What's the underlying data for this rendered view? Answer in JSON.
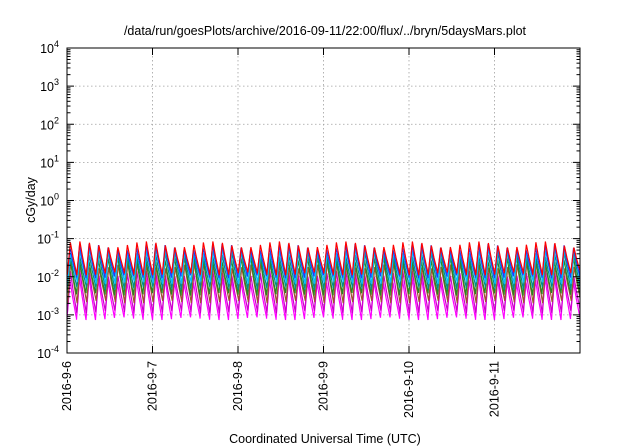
{
  "chart_data": {
    "type": "line",
    "title": "/data/run/goesPlots/archive/2016-09-11/22:00/flux/../bryn/5daysMars.plot",
    "xlabel": "Coordinated Universal Time (UTC)",
    "ylabel": "cGy/day",
    "yscale": "log",
    "ylim": [
      0.0001,
      10000
    ],
    "xlim": [
      "2016-09-06",
      "2016-09-12"
    ],
    "x_ticks": [
      "2016-9-6",
      "2016-9-7",
      "2016-9-8",
      "2016-9-9",
      "2016-9-10",
      "2016-9-11"
    ],
    "y_ticks": [
      {
        "base": "10",
        "exp": "-4",
        "value": 0.0001
      },
      {
        "base": "10",
        "exp": "-3",
        "value": 0.001
      },
      {
        "base": "10",
        "exp": "-2",
        "value": 0.01
      },
      {
        "base": "10",
        "exp": "-1",
        "value": 0.1
      },
      {
        "base": "10",
        "exp": "0",
        "value": 1
      },
      {
        "base": "10",
        "exp": "1",
        "value": 10
      },
      {
        "base": "10",
        "exp": "2",
        "value": 100
      },
      {
        "base": "10",
        "exp": "3",
        "value": 1000
      },
      {
        "base": "10",
        "exp": "4",
        "value": 10000
      }
    ],
    "grid": true,
    "legend": "none",
    "cycles_per_day": 9,
    "series": [
      {
        "color": "#ff00ff",
        "peak": 0.008,
        "trough": 0.0008
      },
      {
        "color": "#cc00cc",
        "peak": 0.012,
        "trough": 0.0012
      },
      {
        "color": "#a0522d",
        "peak": 0.02,
        "trough": 0.0022
      },
      {
        "color": "#228b22",
        "peak": 0.03,
        "trough": 0.0035
      },
      {
        "color": "#008b8b",
        "peak": 0.04,
        "trough": 0.005
      },
      {
        "color": "#00bfff",
        "peak": 0.05,
        "trough": 0.007
      },
      {
        "color": "#1e3cff",
        "peak": 0.06,
        "trough": 0.01
      },
      {
        "color": "#ff0000",
        "peak": 0.07,
        "trough": 0.012
      }
    ]
  }
}
